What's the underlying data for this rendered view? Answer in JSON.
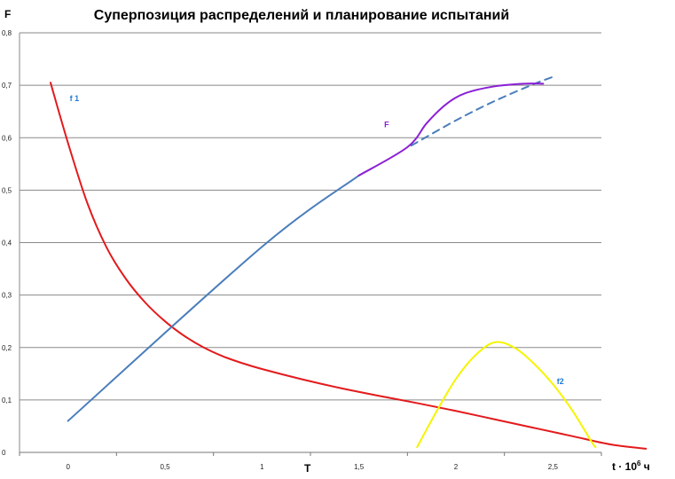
{
  "chart_data": {
    "type": "line",
    "title": "Суперпозиция распределений и планирование испытаний",
    "ylabel": "F",
    "xlabel_main": "t · 10",
    "xlabel_sup": "6",
    "xlabel_unit": " ч",
    "x_marker": "T",
    "xlim": [
      -0.25,
      2.75
    ],
    "ylim": [
      0,
      0.8
    ],
    "x_ticks": [
      {
        "value": 0,
        "label": "0"
      },
      {
        "value": 0.5,
        "label": "0,5"
      },
      {
        "value": 1,
        "label": "1"
      },
      {
        "value": 1.5,
        "label": "1,5"
      },
      {
        "value": 2,
        "label": "2"
      },
      {
        "value": 2.5,
        "label": "2,5"
      }
    ],
    "y_ticks": [
      {
        "value": 0,
        "label": "0"
      },
      {
        "value": 0.1,
        "label": "0,1"
      },
      {
        "value": 0.2,
        "label": "0,2"
      },
      {
        "value": 0.3,
        "label": "0,3"
      },
      {
        "value": 0.4,
        "label": "0,4"
      },
      {
        "value": 0.5,
        "label": "0,5"
      },
      {
        "value": 0.6,
        "label": "0,6"
      },
      {
        "value": 0.7,
        "label": "0,7"
      },
      {
        "value": 0.8,
        "label": "0,8"
      }
    ],
    "grid": "horizontal",
    "series": [
      {
        "name": "f 1",
        "color": "#e31a1c",
        "style": "solid",
        "points": [
          [
            -0.09,
            0.705
          ],
          [
            0,
            0.59
          ],
          [
            0.1,
            0.475
          ],
          [
            0.2,
            0.39
          ],
          [
            0.3,
            0.33
          ],
          [
            0.4,
            0.285
          ],
          [
            0.5,
            0.25
          ],
          [
            0.6,
            0.222
          ],
          [
            0.7,
            0.2
          ],
          [
            0.8,
            0.183
          ],
          [
            0.9,
            0.17
          ],
          [
            1.0,
            0.159
          ],
          [
            1.2,
            0.14
          ],
          [
            1.4,
            0.123
          ],
          [
            1.6,
            0.108
          ],
          [
            1.8,
            0.094
          ],
          [
            2.0,
            0.079
          ],
          [
            2.2,
            0.063
          ],
          [
            2.4,
            0.047
          ],
          [
            2.6,
            0.031
          ],
          [
            2.8,
            0.015
          ],
          [
            2.98,
            0.007
          ]
        ]
      },
      {
        "name": "",
        "color": "#4a7ebb",
        "style": "solid",
        "points": [
          [
            0,
            0.06
          ],
          [
            1.0,
            0.392
          ],
          [
            1.5,
            0.528
          ]
        ]
      },
      {
        "name": "",
        "color": "#4a7ebb",
        "style": "dashed",
        "points": [
          [
            1.77,
            0.585
          ],
          [
            2.0,
            0.633
          ],
          [
            2.2,
            0.67
          ],
          [
            2.4,
            0.702
          ],
          [
            2.5,
            0.716
          ]
        ]
      },
      {
        "name": "F",
        "color": "#8b1fd6",
        "style": "solid",
        "points": [
          [
            1.5,
            0.528
          ],
          [
            1.75,
            0.582
          ],
          [
            1.85,
            0.628
          ],
          [
            1.95,
            0.664
          ],
          [
            2.05,
            0.685
          ],
          [
            2.2,
            0.698
          ],
          [
            2.35,
            0.703
          ],
          [
            2.45,
            0.703
          ]
        ]
      },
      {
        "name": "f2",
        "color": "#f5f500",
        "style": "solid",
        "points": [
          [
            1.8,
            0.01
          ],
          [
            1.9,
            0.078
          ],
          [
            2.0,
            0.14
          ],
          [
            2.1,
            0.185
          ],
          [
            2.2,
            0.21
          ],
          [
            2.3,
            0.2
          ],
          [
            2.4,
            0.17
          ],
          [
            2.5,
            0.13
          ],
          [
            2.6,
            0.08
          ],
          [
            2.7,
            0.02
          ],
          [
            2.72,
            0.01
          ]
        ]
      }
    ],
    "annotations": [
      {
        "text": "f 1",
        "series": "f 1",
        "color": "#1f7ad6"
      },
      {
        "text": "F",
        "series": "F",
        "color": "#8b1fd6"
      },
      {
        "text": "f2",
        "series": "f2",
        "color": "#1f7ad6"
      }
    ]
  }
}
